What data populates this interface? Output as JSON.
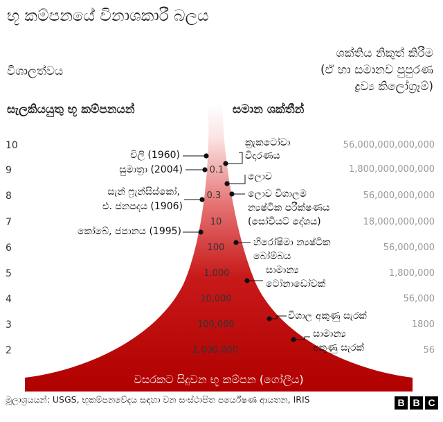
{
  "title": "භූ කම්පනයේ විනාශකාරී බලය",
  "headers": {
    "magnitude": "විශාලත්වය",
    "energy_release_line1": "ශක්තිය නිකුත් කිරීම",
    "energy_release_line2": "(ඒ හා සමානව පුපුරණ",
    "energy_release_line3": "ද්‍රව්‍ය කිලෝග්‍රෑම්)",
    "notable_quakes": "සැලකියයුතු භූ කම්පනයන්",
    "equivalent_energy": "සමාන ශක්තීන්"
  },
  "magnitudes": [
    "10",
    "9",
    "8",
    "7",
    "6",
    "5",
    "4",
    "3",
    "2"
  ],
  "energy_values": [
    "56,000,000,000,000",
    "1,800,000,000,000",
    "56,000,000,000",
    "18,000,000,000",
    "56,000,000",
    "1,800,000",
    "56,000",
    "1800",
    "56"
  ],
  "inner_values": [
    "0.1",
    "0.3",
    "10",
    "100",
    "1,000",
    "10,000",
    "100,000",
    "1,000,000"
  ],
  "earthquakes": [
    {
      "line1": "චිලි (1960)",
      "line2": ""
    },
    {
      "line1": "සුමාත්‍රා (2004)",
      "line2": ""
    },
    {
      "line1": "සැන් ෆ්‍රැන්සිස්කෝ,",
      "line2": "එ. ජනපදය  (1906)"
    },
    {
      "line1": "කෝබේ, ජපානය (1995)",
      "line2": ""
    }
  ],
  "equivalents": [
    {
      "line1": "ක්‍රැකටෝවා",
      "line2": "විදාරණය"
    },
    {
      "line1": "ලොව",
      "line2": ""
    },
    {
      "line1": "ලොව විශාලම",
      "line2": "න්‍යෂ්ටික පරීක්ෂණය",
      "line3": "(සෝවියට් දේශය)"
    },
    {
      "line1": "හිරෝෂිමා න්‍යෂ්ටික",
      "line2": "බෝම්බය"
    },
    {
      "line1": "සාමාන්‍ය",
      "line2": "ටෝනාඩෝවක්"
    },
    {
      "line1": "විශාල අකුණු සැරක්",
      "line2": ""
    },
    {
      "line1": "සාමාන්‍ය",
      "line2": "අකුණු සැරක්"
    }
  ],
  "base_label": "වසරකට සිදුවන භූ කම්පන (ගෝලීය)",
  "source": "මූලාශ්‍රයයන්: USGS, භූකම්පනවේදය සඳහා වන සංස්ථාපිත පර්යේෂණ ආයතන, IRIS",
  "logo": [
    "B",
    "B",
    "C"
  ],
  "colors": {
    "shape_top": "#ffffff",
    "shape_bottom": "#b80000",
    "energy_text": "#999999"
  }
}
